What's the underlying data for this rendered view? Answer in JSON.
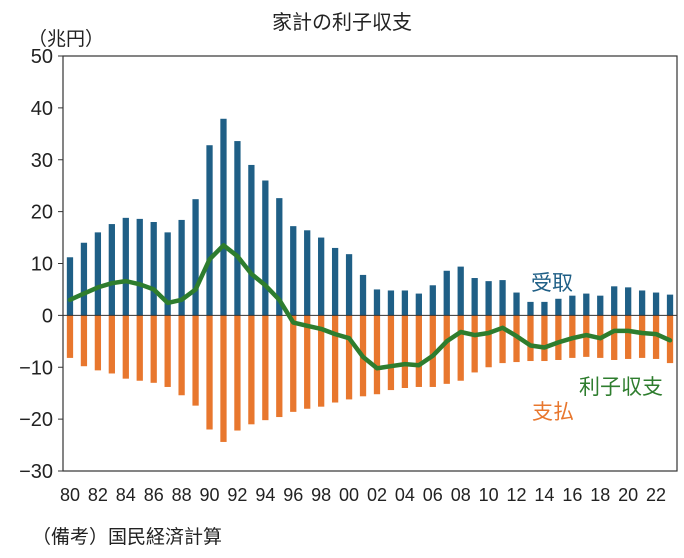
{
  "title": "家計の利子収支",
  "unit_label": "（兆円）",
  "source_label": "（備考）国民経済計算",
  "colors": {
    "receipts": "#1f5f86",
    "payments": "#e8772e",
    "net": "#2e7d2e",
    "axis": "#333333"
  },
  "chart_data": {
    "type": "bar",
    "title": "家計の利子収支",
    "ylabel": "（兆円）",
    "ylim": [
      -30,
      50
    ],
    "yticks": [
      50,
      40,
      30,
      20,
      10,
      0,
      -10,
      -20,
      -30
    ],
    "ytick_labels": [
      "50",
      "40",
      "30",
      "20",
      "10",
      "0",
      "−10",
      "−20",
      "−30"
    ],
    "years": [
      1980,
      1981,
      1982,
      1983,
      1984,
      1985,
      1986,
      1987,
      1988,
      1989,
      1990,
      1991,
      1992,
      1993,
      1994,
      1995,
      1996,
      1997,
      1998,
      1999,
      2000,
      2001,
      2002,
      2003,
      2004,
      2005,
      2006,
      2007,
      2008,
      2009,
      2010,
      2011,
      2012,
      2013,
      2014,
      2015,
      2016,
      2017,
      2018,
      2019,
      2020,
      2021,
      2022,
      2023
    ],
    "xtick_labels": [
      "80",
      "82",
      "84",
      "86",
      "88",
      "90",
      "92",
      "94",
      "96",
      "98",
      "00",
      "02",
      "04",
      "06",
      "08",
      "10",
      "12",
      "14",
      "16",
      "18",
      "20",
      "22"
    ],
    "series": [
      {
        "name": "受取",
        "type": "bar",
        "values": [
          11.2,
          14.0,
          16.0,
          17.6,
          18.8,
          18.6,
          18.0,
          16.0,
          18.4,
          22.4,
          32.8,
          37.9,
          33.6,
          29.0,
          26.0,
          22.6,
          17.2,
          16.4,
          15.0,
          13.0,
          11.8,
          7.8,
          5.0,
          4.8,
          4.8,
          4.2,
          5.8,
          8.6,
          9.4,
          7.2,
          6.6,
          6.8,
          4.4,
          2.6,
          2.6,
          3.2,
          3.8,
          4.2,
          3.8,
          5.6,
          5.4,
          4.8,
          4.4,
          4.0
        ]
      },
      {
        "name": "支払",
        "type": "bar",
        "values": [
          -8.2,
          -9.8,
          -10.6,
          -11.2,
          -12.2,
          -12.6,
          -13.0,
          -13.8,
          -15.4,
          -17.4,
          -22.0,
          -24.4,
          -22.2,
          -21.0,
          -20.2,
          -19.6,
          -18.6,
          -18.0,
          -17.6,
          -16.8,
          -16.2,
          -15.6,
          -15.2,
          -14.4,
          -14.0,
          -13.8,
          -13.8,
          -13.2,
          -12.6,
          -11.0,
          -10.0,
          -9.2,
          -9.0,
          -8.8,
          -8.8,
          -8.6,
          -8.2,
          -8.0,
          -8.2,
          -8.6,
          -8.4,
          -8.2,
          -8.4,
          -9.2
        ]
      },
      {
        "name": "利子収支",
        "type": "line",
        "values": [
          3.0,
          4.2,
          5.4,
          6.2,
          6.6,
          6.0,
          5.0,
          2.4,
          3.0,
          5.0,
          10.8,
          13.5,
          11.4,
          8.0,
          5.8,
          3.0,
          -1.4,
          -2.0,
          -2.6,
          -3.6,
          -4.4,
          -8.0,
          -10.2,
          -9.8,
          -9.4,
          -9.6,
          -7.8,
          -5.0,
          -3.2,
          -3.8,
          -3.4,
          -2.4,
          -4.0,
          -5.8,
          -6.2,
          -5.2,
          -4.4,
          -3.8,
          -4.4,
          -3.0,
          -3.0,
          -3.4,
          -3.6,
          -4.8
        ]
      }
    ],
    "annotations": [
      {
        "text": "受取",
        "series": "受取"
      },
      {
        "text": "利子収支",
        "series": "利子収支"
      },
      {
        "text": "支払",
        "series": "支払"
      }
    ],
    "grid": false,
    "legend": "inline labels"
  }
}
